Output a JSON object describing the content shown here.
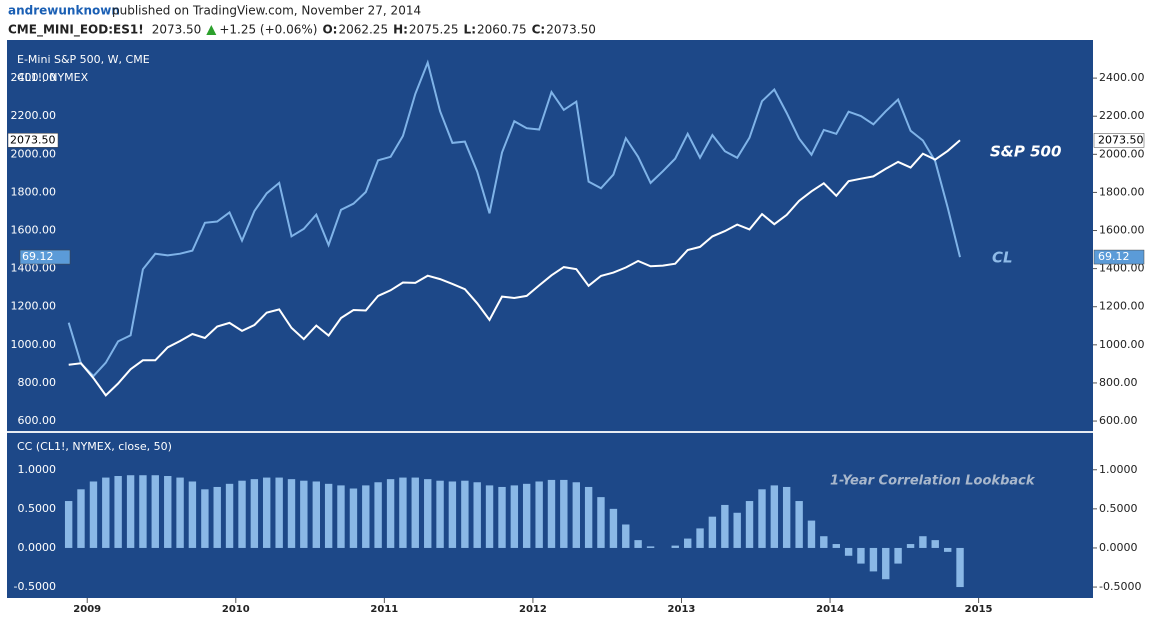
{
  "header": {
    "user": "andrewunknown",
    "published": "published on TradingView.com, November 27, 2014",
    "symbol": "CME_MINI_EOD:ES1!",
    "last": "2073.50",
    "change": "+1.25 (+0.06%)",
    "quotes": [
      {
        "label": "O:",
        "value": "2062.25"
      },
      {
        "label": "H:",
        "value": "2075.25"
      },
      {
        "label": "L:",
        "value": "2060.75"
      },
      {
        "label": "C:",
        "value": "2073.50"
      }
    ]
  },
  "chart_data": [
    {
      "type": "line",
      "title": "E-Mini S&P 500, W, CME",
      "subtitle": "CL1!, NYMEX",
      "annotations": [
        "S&P 500",
        "CL"
      ],
      "background": "#1d4888",
      "x": [
        2008.875,
        2008.958,
        2009.042,
        2009.125,
        2009.208,
        2009.292,
        2009.375,
        2009.458,
        2009.542,
        2009.625,
        2009.708,
        2009.792,
        2009.875,
        2009.958,
        2010.042,
        2010.125,
        2010.208,
        2010.292,
        2010.375,
        2010.458,
        2010.542,
        2010.625,
        2010.708,
        2010.792,
        2010.875,
        2010.958,
        2011.042,
        2011.125,
        2011.208,
        2011.292,
        2011.375,
        2011.458,
        2011.542,
        2011.625,
        2011.708,
        2011.792,
        2011.875,
        2011.958,
        2012.042,
        2012.125,
        2012.208,
        2012.292,
        2012.375,
        2012.458,
        2012.542,
        2012.625,
        2012.708,
        2012.792,
        2012.875,
        2012.958,
        2013.042,
        2013.125,
        2013.208,
        2013.292,
        2013.375,
        2013.458,
        2013.542,
        2013.625,
        2013.708,
        2013.792,
        2013.875,
        2013.958,
        2014.042,
        2014.125,
        2014.208,
        2014.292,
        2014.375,
        2014.458,
        2014.542,
        2014.625,
        2014.708,
        2014.792,
        2014.875
      ],
      "xlim": [
        2008.46,
        2015.77
      ],
      "ylim": [
        553,
        2600
      ],
      "yticks": [
        {
          "value": 600,
          "label": "600.00"
        },
        {
          "value": 800,
          "label": "800.00"
        },
        {
          "value": 1000,
          "label": "1000.00"
        },
        {
          "value": 1200,
          "label": "1200.00"
        },
        {
          "value": 1400,
          "label": "1400.00"
        },
        {
          "value": 1600,
          "label": "1600.00"
        },
        {
          "value": 1800,
          "label": "1800.00"
        },
        {
          "value": 2000,
          "label": "2000.00"
        },
        {
          "value": 2200,
          "label": "2200.00"
        },
        {
          "value": 2400,
          "label": "2400.00"
        }
      ],
      "y2lim": [
        29.3,
        119.1
      ],
      "series": [
        {
          "name": "E-Mini S&P 500",
          "color": "#ffffff",
          "last_label": "2073.50",
          "values": [
            896,
            903,
            825,
            735,
            797,
            872,
            919,
            919,
            987,
            1020,
            1057,
            1036,
            1096,
            1115,
            1073,
            1104,
            1169,
            1186,
            1089,
            1030,
            1101,
            1049,
            1141,
            1183,
            1180,
            1257,
            1286,
            1327,
            1325,
            1363,
            1345,
            1320,
            1292,
            1218,
            1131,
            1253,
            1246,
            1257,
            1312,
            1365,
            1408,
            1397,
            1310,
            1362,
            1379,
            1406,
            1440,
            1412,
            1416,
            1426,
            1498,
            1514,
            1569,
            1597,
            1631,
            1606,
            1686,
            1633,
            1682,
            1756,
            1806,
            1848,
            1782,
            1859,
            1872,
            1884,
            1924,
            1960,
            1931,
            2003,
            1972,
            2018,
            2073.5
          ]
        },
        {
          "name": "CL1!",
          "color": "#7fb3e8",
          "axis": "y2",
          "values": [
            54,
            44.6,
            41.7,
            44.8,
            49.7,
            51.1,
            66.3,
            69.9,
            69.5,
            69.9,
            70.6,
            77,
            77.3,
            79.4,
            72.9,
            79.7,
            83.8,
            86.2,
            73.9,
            75.6,
            78.9,
            71.9,
            79.97,
            81.4,
            84.1,
            91.4,
            92.2,
            97,
            106.7,
            113.9,
            102.7,
            95.4,
            95.7,
            88.8,
            79.2,
            93.2,
            100.4,
            98.8,
            98.5,
            107.1,
            103,
            104.9,
            86.5,
            84.96,
            88.1,
            96.5,
            92.2,
            86.2,
            88.9,
            91.8,
            97.5,
            92,
            97.2,
            93.5,
            91.97,
            96.6,
            105,
            107.7,
            102.3,
            96.4,
            92.7,
            98.4,
            97.5,
            102.6,
            101.6,
            99.7,
            102.7,
            105.4,
            98.2,
            95.96,
            91.2,
            80.5,
            69.12
          ]
        }
      ]
    },
    {
      "type": "bar",
      "title": "CC (CL1!, NYMEX, close, 50)",
      "annotations": [
        "1-Year Correlation Lookback"
      ],
      "color": "#8ab8e6",
      "x": [
        2008.875,
        2008.958,
        2009.042,
        2009.125,
        2009.208,
        2009.292,
        2009.375,
        2009.458,
        2009.542,
        2009.625,
        2009.708,
        2009.792,
        2009.875,
        2009.958,
        2010.042,
        2010.125,
        2010.208,
        2010.292,
        2010.375,
        2010.458,
        2010.542,
        2010.625,
        2010.708,
        2010.792,
        2010.875,
        2010.958,
        2011.042,
        2011.125,
        2011.208,
        2011.292,
        2011.375,
        2011.458,
        2011.542,
        2011.625,
        2011.708,
        2011.792,
        2011.875,
        2011.958,
        2012.042,
        2012.125,
        2012.208,
        2012.292,
        2012.375,
        2012.458,
        2012.542,
        2012.625,
        2012.708,
        2012.792,
        2012.875,
        2012.958,
        2013.042,
        2013.125,
        2013.208,
        2013.292,
        2013.375,
        2013.458,
        2013.542,
        2013.625,
        2013.708,
        2013.792,
        2013.875,
        2013.958,
        2014.042,
        2014.125,
        2014.208,
        2014.292,
        2014.375,
        2014.458,
        2014.542,
        2014.625,
        2014.708,
        2014.792,
        2014.875
      ],
      "values": [
        0.6,
        0.75,
        0.85,
        0.9,
        0.92,
        0.93,
        0.93,
        0.93,
        0.92,
        0.9,
        0.85,
        0.75,
        0.78,
        0.82,
        0.86,
        0.88,
        0.9,
        0.9,
        0.88,
        0.86,
        0.85,
        0.82,
        0.8,
        0.76,
        0.8,
        0.84,
        0.88,
        0.9,
        0.9,
        0.88,
        0.86,
        0.85,
        0.86,
        0.84,
        0.8,
        0.78,
        0.8,
        0.82,
        0.85,
        0.87,
        0.87,
        0.84,
        0.78,
        0.65,
        0.5,
        0.3,
        0.1,
        0.02,
        0,
        0.03,
        0.12,
        0.25,
        0.4,
        0.55,
        0.45,
        0.6,
        0.75,
        0.8,
        0.78,
        0.6,
        0.35,
        0.15,
        0.05,
        -0.1,
        -0.2,
        -0.3,
        -0.4,
        -0.2,
        0.05,
        0.15,
        0.1,
        -0.05,
        -0.5
      ],
      "xlim": [
        2008.46,
        2015.77
      ],
      "xticks": [
        2009,
        2010,
        2011,
        2012,
        2013,
        2014,
        2015
      ],
      "ylim": [
        -0.64,
        1.47
      ],
      "yticks": [
        {
          "value": 1,
          "label": "1.0000"
        },
        {
          "value": 0.5,
          "label": "0.5000"
        },
        {
          "value": 0,
          "label": "0.0000"
        },
        {
          "value": -0.5,
          "label": "-0.5000"
        }
      ]
    }
  ]
}
